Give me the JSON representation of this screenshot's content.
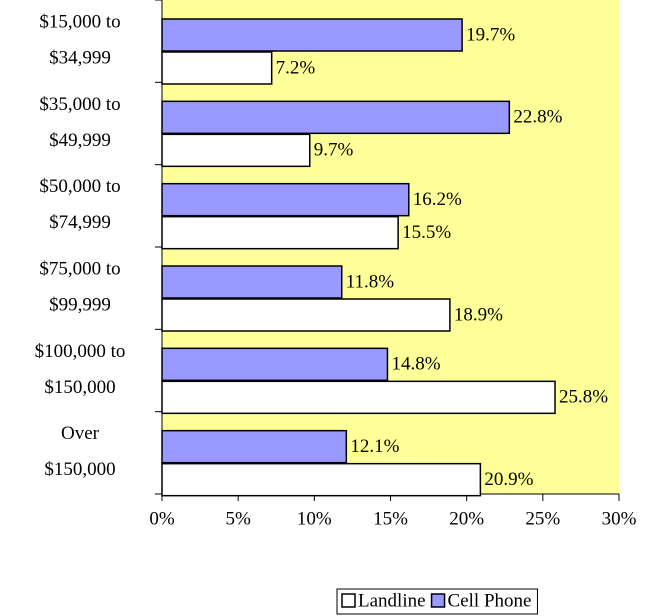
{
  "chart_data": {
    "type": "bar",
    "orientation": "horizontal",
    "categories": [
      [
        "$15,000 to",
        "$34,999"
      ],
      [
        "$35,000 to",
        "$49,999"
      ],
      [
        "$50,000 to",
        "$74,999"
      ],
      [
        "$75,000 to",
        "$99,999"
      ],
      [
        "$100,000 to",
        "$150,000"
      ],
      [
        "Over",
        "$150,000"
      ]
    ],
    "series": [
      {
        "name": "Landline",
        "color": "#ffffff",
        "values": [
          7.2,
          9.7,
          15.5,
          18.9,
          25.8,
          20.9
        ],
        "value_labels": [
          "7.2%",
          "9.7%",
          "15.5%",
          "18.9%",
          "25.8%",
          "20.9%"
        ]
      },
      {
        "name": "Cell Phone",
        "color": "#9999ff",
        "values": [
          19.7,
          22.8,
          16.2,
          11.8,
          14.8,
          12.1
        ],
        "value_labels": [
          "19.7%",
          "22.8%",
          "16.2%",
          "11.8%",
          "14.8%",
          "12.1%"
        ]
      }
    ],
    "xlim": [
      0,
      30
    ],
    "xticks": [
      {
        "value": 0,
        "label": "0%"
      },
      {
        "value": 5,
        "label": "5%"
      },
      {
        "value": 10,
        "label": "10%"
      },
      {
        "value": 15,
        "label": "15%"
      },
      {
        "value": 20,
        "label": "20%"
      },
      {
        "value": 25,
        "label": "25%"
      },
      {
        "value": 30,
        "label": "30%"
      }
    ],
    "legend": "bottom",
    "background": "#ffff99"
  }
}
